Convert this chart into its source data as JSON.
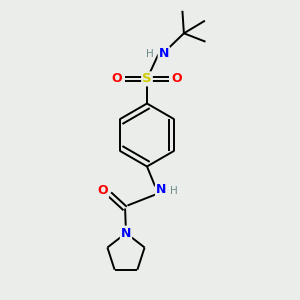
{
  "background_color": "#eaede9",
  "atom_colors": {
    "C": "#000000",
    "H": "#6c8c8c",
    "N": "#0000ff",
    "O": "#ff0000",
    "S": "#cccc00"
  },
  "figsize": [
    3.0,
    3.0
  ],
  "dpi": 100
}
